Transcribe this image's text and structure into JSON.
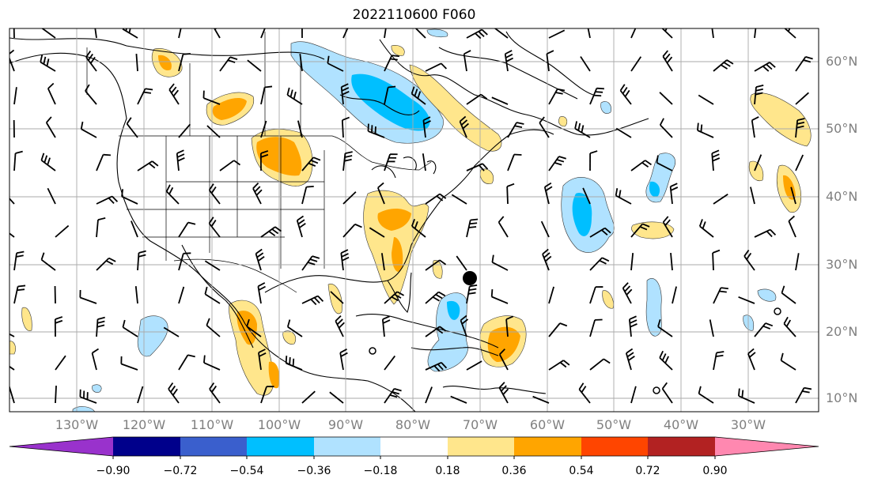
{
  "title": "2022110600 F060",
  "lat_labels": [
    "60°N",
    "50°N",
    "40°N",
    "30°N",
    "20°N",
    "10°N"
  ],
  "lon_labels": [
    "130°W",
    "120°W",
    "110°W",
    "100°W",
    "90°W",
    "80°W",
    "70°W",
    "60°W",
    "50°W",
    "40°W",
    "30°W"
  ],
  "colorbar": {
    "levels": [
      "−0.90",
      "−0.72",
      "−0.54",
      "−0.36",
      "−0.18",
      "0.18",
      "0.36",
      "0.54",
      "0.72",
      "0.90"
    ],
    "colors": [
      "#9932cc",
      "#00008b",
      "#3a5fcd",
      "#00bfff",
      "#b0e2ff",
      "#ffffff",
      "#ffe68c",
      "#ffa500",
      "#ff4500",
      "#b22222",
      "#ff88b0"
    ]
  },
  "map_extent": {
    "lon": [
      -138,
      -17
    ],
    "lat": [
      7,
      64
    ]
  },
  "marker": "storm-center-dot",
  "shading_colors": {
    "light_blue": "#b0e2ff",
    "blue": "#00bfff",
    "yellow": "#ffe68c",
    "orange": "#ffa500"
  }
}
